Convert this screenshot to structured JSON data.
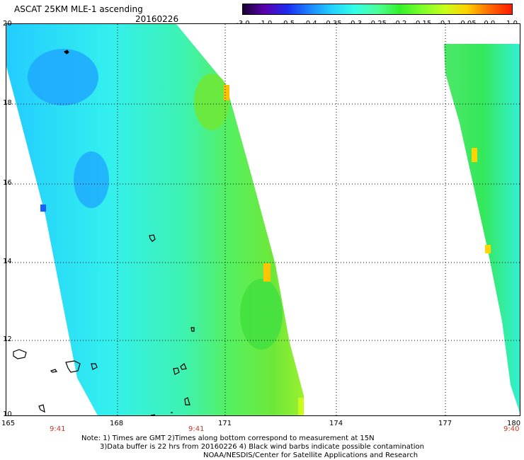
{
  "title": "ASCAT 25KM MLE-1 ascending",
  "date": "20160226",
  "colorbar": {
    "ticks": [
      "-3.0",
      "-1.0",
      "-0.5",
      "-0.4",
      "-0.35",
      "-0.3",
      "-0.25",
      "-0.2",
      "-0.15",
      "-0.1",
      "-0.05",
      "0.0",
      "1.0"
    ],
    "colors": [
      "#1a0033",
      "#5a00b0",
      "#1c2cf0",
      "#1b87ff",
      "#23d2ff",
      "#33ffe6",
      "#4dff99",
      "#34f02a",
      "#7dff2a",
      "#c8ff1a",
      "#ffd000",
      "#ff6a00",
      "#ff1a00"
    ]
  },
  "map": {
    "lat_labels": [
      "20",
      "18",
      "16",
      "14",
      "12",
      "10"
    ],
    "lon_labels": [
      "165",
      "168",
      "171",
      "174",
      "177",
      "180"
    ],
    "time_labels": [
      "9:41",
      "9:41",
      "9:40"
    ]
  },
  "notes": {
    "line1": "Note: 1) Times are GMT 2)Times along bottom correspond to measurement at 15N",
    "line2": "3)Data buffer is 22 hrs from 20160226 4) Black wind barbs indicate possible contamination",
    "line3": "NOAA/NESDIS/Center for Satellite Applications and Research"
  }
}
